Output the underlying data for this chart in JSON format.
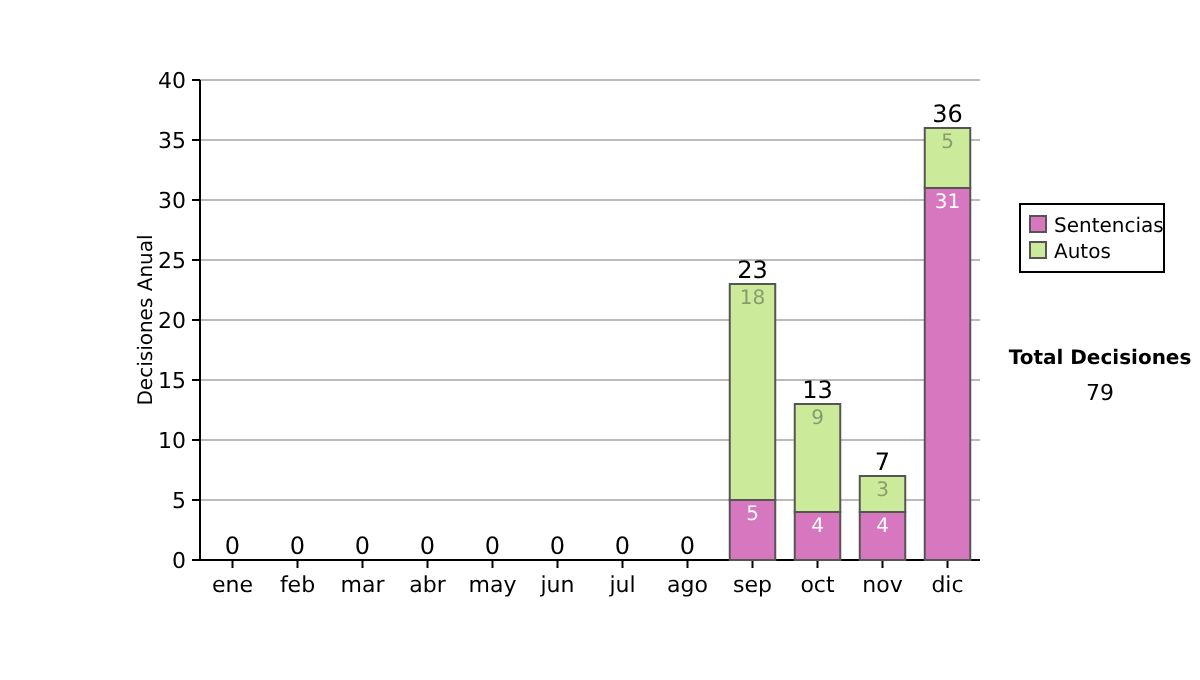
{
  "chart_data": {
    "type": "bar",
    "stacked": true,
    "ylabel": "Decisiones Anual",
    "categories": [
      "ene",
      "feb",
      "mar",
      "abr",
      "may",
      "jun",
      "jul",
      "ago",
      "sep",
      "oct",
      "nov",
      "dic"
    ],
    "series": [
      {
        "name": "Sentencias",
        "color": "#d677c0",
        "values": [
          0,
          0,
          0,
          0,
          0,
          0,
          0,
          0,
          5,
          4,
          4,
          31
        ],
        "value_labels": [
          null,
          null,
          null,
          null,
          null,
          null,
          null,
          null,
          "5",
          "4",
          "4",
          "31"
        ]
      },
      {
        "name": "Autos",
        "color": "#cceb9a",
        "values": [
          0,
          0,
          0,
          0,
          0,
          0,
          0,
          0,
          18,
          9,
          3,
          5
        ],
        "value_labels": [
          null,
          null,
          null,
          null,
          null,
          null,
          null,
          null,
          "18",
          "9",
          "3",
          "5"
        ]
      }
    ],
    "totals": [
      "0",
      "0",
      "0",
      "0",
      "0",
      "0",
      "0",
      "0",
      "23",
      "13",
      "7",
      "36"
    ],
    "ylim": [
      0,
      40
    ],
    "yticks": [
      0,
      5,
      10,
      15,
      20,
      25,
      30,
      35,
      40
    ],
    "grid": "y",
    "legend": "right",
    "annotations": [
      "Total Decisiones",
      "79"
    ]
  }
}
